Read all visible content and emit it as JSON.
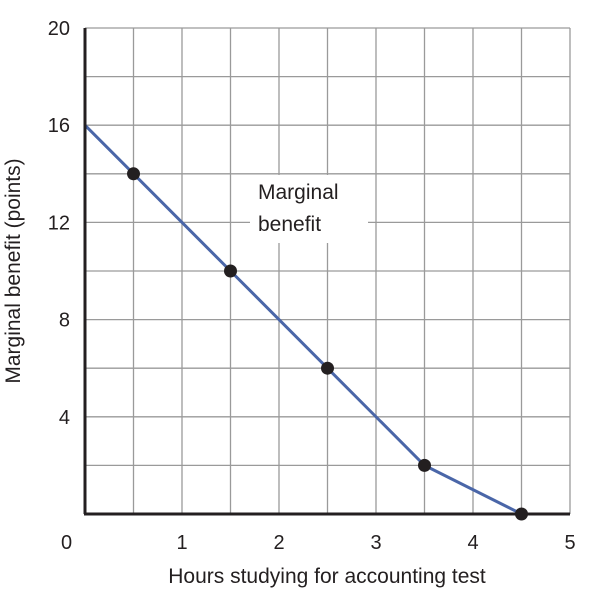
{
  "chart_data": {
    "type": "line",
    "title": "",
    "xlabel": "Hours studying for accounting test",
    "ylabel": "Marginal benefit  (points)",
    "xlim": [
      0,
      5
    ],
    "ylim": [
      0,
      20
    ],
    "x_ticks": [
      0,
      1,
      2,
      3,
      4,
      5
    ],
    "y_ticks": [
      4,
      8,
      12,
      16,
      20
    ],
    "x_origin_label": "0",
    "grid": true,
    "series": [
      {
        "name": "Marginal benefit",
        "color": "#4a66a8",
        "line": {
          "x": [
            0,
            0.5,
            1.5,
            2.5,
            3.5,
            4.5
          ],
          "y": [
            16,
            14,
            10,
            6,
            2,
            0
          ]
        },
        "points": {
          "x": [
            0.5,
            1.5,
            2.5,
            3.5,
            4.5
          ],
          "y": [
            14,
            10,
            6,
            2,
            0
          ]
        }
      }
    ],
    "annotation": {
      "lines": [
        "Marginal",
        "benefit"
      ]
    }
  }
}
